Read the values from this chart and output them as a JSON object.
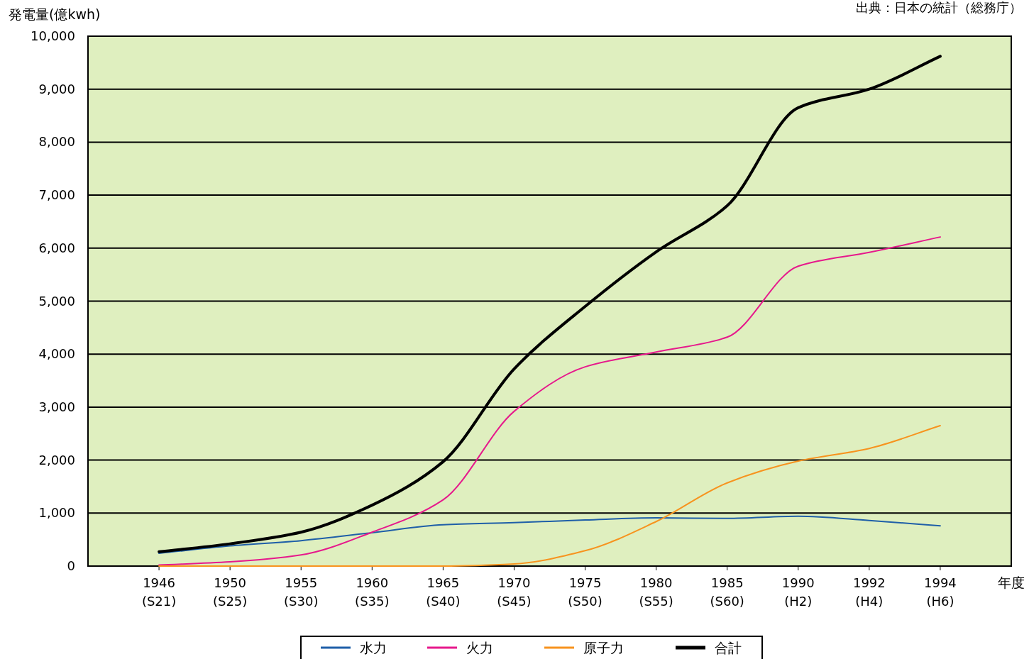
{
  "chart_data": {
    "type": "line",
    "ylabel": "発電量(億kwh)",
    "xlabel": "年度",
    "annotations": [
      "出典：日本の統計（総務庁）"
    ],
    "categories": [
      "1946\n(S21)",
      "1950\n(S25)",
      "1955\n(S30)",
      "1960\n(S35)",
      "1965\n(S40)",
      "1970\n(S45)",
      "1975\n(S50)",
      "1980\n(S55)",
      "1985\n(S60)",
      "1990\n(H2)",
      "1992\n(H4)",
      "1994\n(H6)"
    ],
    "ylim": [
      0,
      10000
    ],
    "yticks": [
      0,
      {
        "value": 1000,
        "label": "1,000"
      },
      {
        "value": 2000,
        "label": "2,000"
      },
      {
        "value": 3000,
        "label": "3,000"
      },
      {
        "value": 4000,
        "label": "4,000"
      },
      {
        "value": 5000,
        "label": "5,000"
      },
      {
        "value": 6000,
        "label": "6,000"
      },
      {
        "value": 7000,
        "label": "7,000"
      },
      {
        "value": 8000,
        "label": "8,000"
      },
      {
        "value": 9000,
        "label": "9,000"
      },
      {
        "value": 10000,
        "label": "10,000"
      }
    ],
    "grid": "y",
    "legend": "bottom",
    "marker": "none",
    "line_style": "solid",
    "series": [
      {
        "name": "水力",
        "color": "#1f5fa8",
        "values": [
          240,
          380,
          480,
          630,
          780,
          820,
          870,
          910,
          900,
          940,
          860,
          760
        ]
      },
      {
        "name": "火力",
        "color": "#e6198c",
        "values": [
          20,
          80,
          210,
          640,
          1250,
          2920,
          3760,
          4040,
          4320,
          5660,
          5920,
          6210
        ]
      },
      {
        "name": "原子力",
        "color": "#f7931e",
        "values": [
          0,
          0,
          0,
          0,
          0,
          40,
          290,
          840,
          1570,
          1980,
          2220,
          2650
        ]
      },
      {
        "name": "合計",
        "color": "#000000",
        "values": [
          270,
          420,
          640,
          1150,
          1970,
          3720,
          4900,
          5930,
          6800,
          8650,
          9000,
          9620
        ]
      }
    ]
  }
}
